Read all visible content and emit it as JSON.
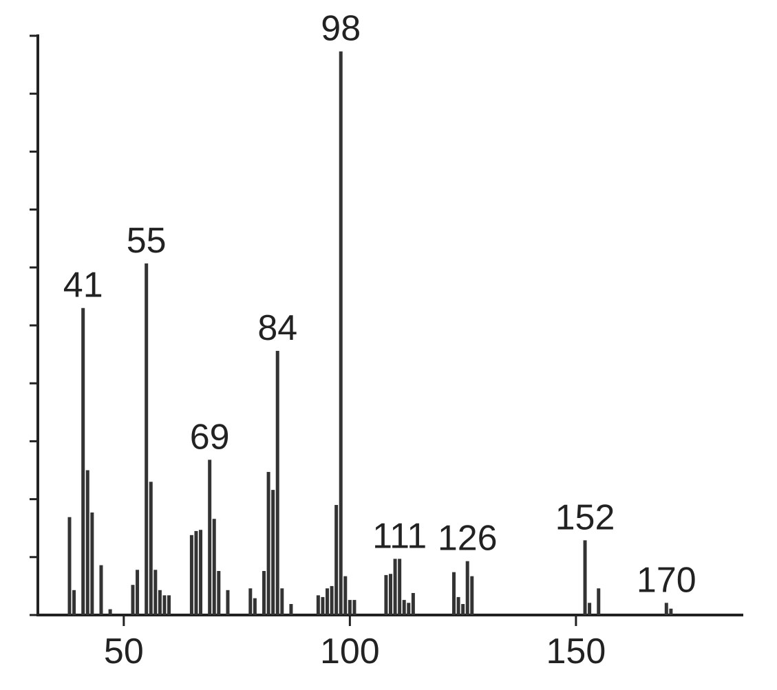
{
  "chart_data": {
    "type": "stick",
    "x": [
      38,
      39,
      41,
      42,
      43,
      45,
      47,
      52,
      53,
      55,
      56,
      57,
      58,
      59,
      60,
      65,
      66,
      67,
      69,
      70,
      71,
      73,
      78,
      79,
      81,
      82,
      83,
      84,
      85,
      87,
      93,
      94,
      95,
      96,
      97,
      98,
      99,
      100,
      101,
      108,
      109,
      110,
      111,
      112,
      113,
      114,
      123,
      124,
      125,
      126,
      127,
      152,
      153,
      155,
      170,
      171
    ],
    "values": [
      16.9,
      4.3,
      53,
      25,
      17.7,
      8.6,
      1,
      5.2,
      7.8,
      60.7,
      23,
      7.8,
      4.3,
      3.4,
      3.4,
      13.8,
      14.5,
      14.7,
      26.8,
      16.6,
      7.6,
      4.3,
      4.6,
      2.9,
      7.6,
      24.7,
      21.6,
      45.6,
      4.6,
      1.9,
      3.4,
      3.1,
      4.6,
      5,
      19,
      97.3,
      6.7,
      2.6,
      2.6,
      6.9,
      7.1,
      9.7,
      9.7,
      2.6,
      2.1,
      3.8,
      7.4,
      3.1,
      1.9,
      9.3,
      6.7,
      12.9,
      2.1,
      4.6,
      2.1,
      1.1
    ],
    "color": "#333333",
    "annotations": [
      41,
      55,
      69,
      84,
      98,
      111,
      126,
      152,
      170
    ],
    "xlim": [
      31,
      187
    ],
    "xticks": [
      50,
      100,
      150
    ],
    "ylim": [
      0,
      100
    ],
    "yticks": [
      0,
      10,
      20,
      30,
      40,
      50,
      60,
      70,
      80,
      90,
      100
    ]
  }
}
